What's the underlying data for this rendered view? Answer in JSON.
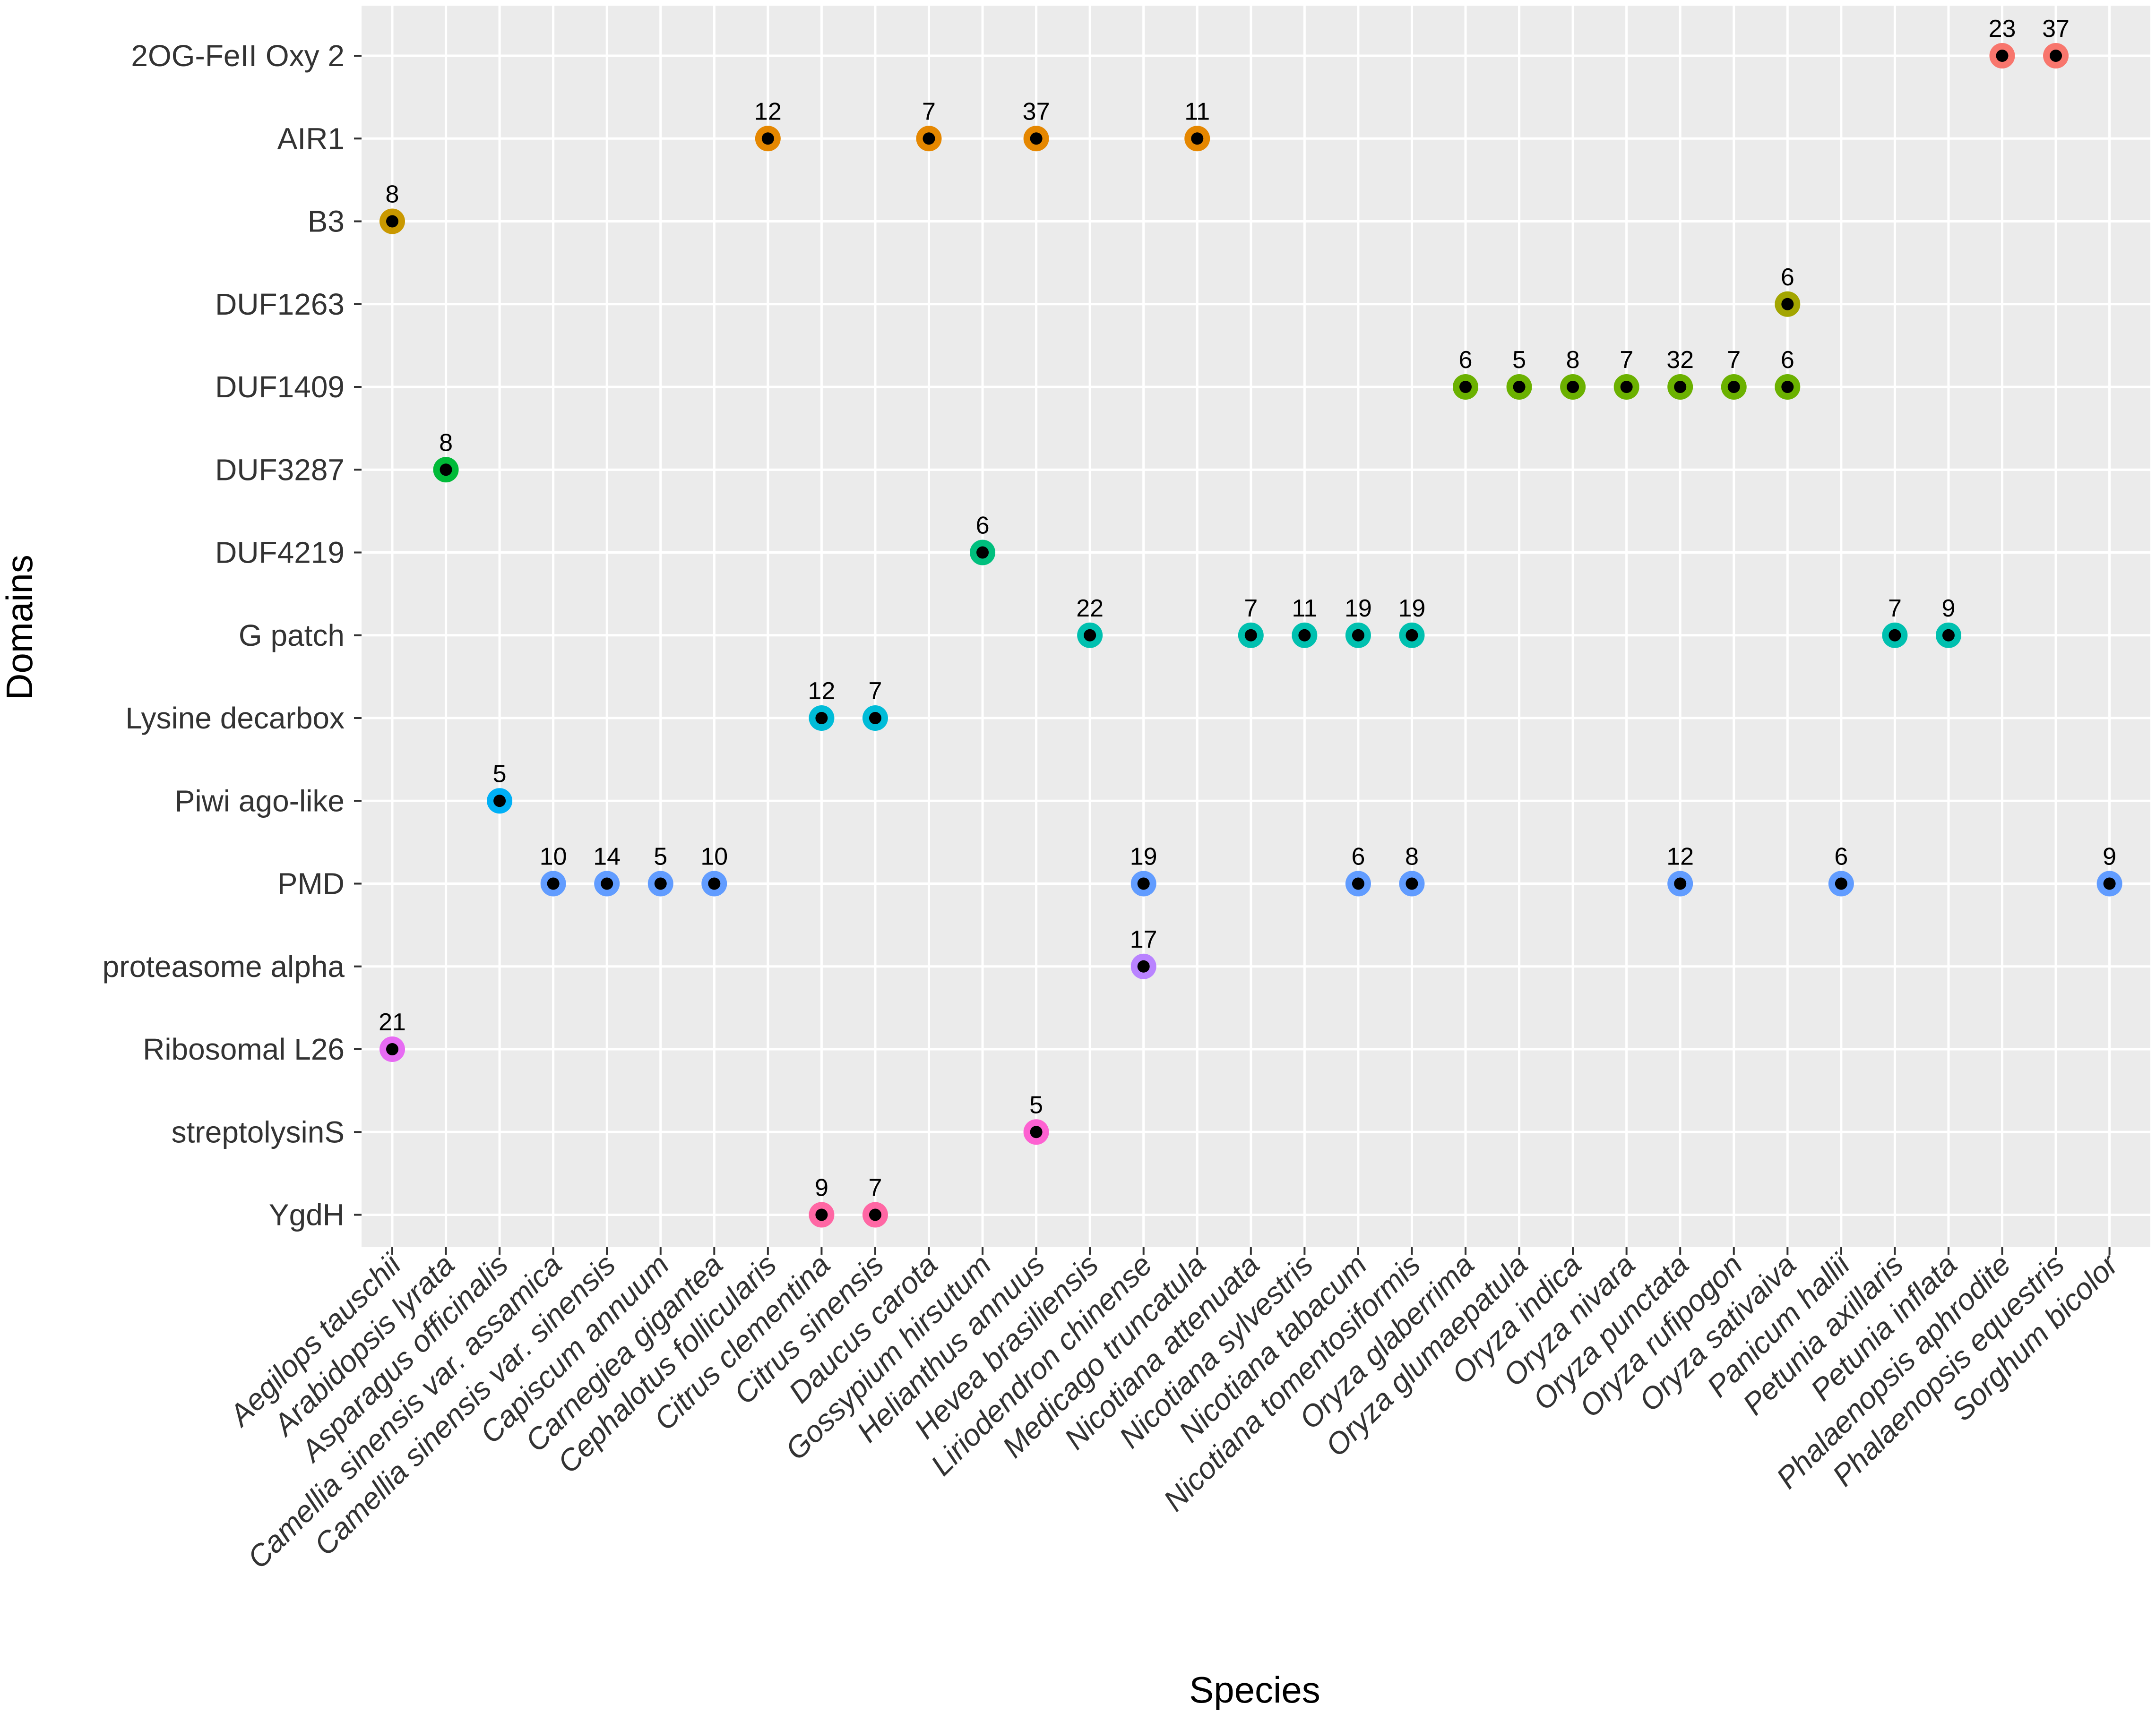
{
  "chart_data": {
    "type": "scatter",
    "title": "",
    "xlabel": "Species",
    "ylabel": "Domains",
    "grid": true,
    "legend": "none",
    "panel_background": "#ebebeb",
    "grid_color": "#ffffff",
    "point_center_color": "#000000",
    "categories_y": [
      "2OG-FeII Oxy 2",
      "AIR1",
      "B3",
      "DUF1263",
      "DUF1409",
      "DUF3287",
      "DUF4219",
      "G patch",
      "Lysine decarbox",
      "Piwi ago-like",
      "PMD",
      "proteasome alpha",
      "Ribosomal L26",
      "streptolysinS",
      "YgdH"
    ],
    "domain_colors": {
      "2OG-FeII Oxy 2": "#f8766d",
      "AIR1": "#e58700",
      "B3": "#c99800",
      "DUF1263": "#a3a500",
      "DUF1409": "#6bb100",
      "DUF3287": "#00ba38",
      "DUF4219": "#00bf7d",
      "G patch": "#00c0af",
      "Lysine decarbox": "#00bcd8",
      "Piwi ago-like": "#00b0f6",
      "PMD": "#619cff",
      "proteasome alpha": "#b983ff",
      "Ribosomal L26": "#e76bf3",
      "streptolysinS": "#fd61d1",
      "YgdH": "#ff67a4"
    },
    "categories_x": [
      "Aegilops tauschii",
      "Arabidopsis lyrata",
      "Asparagus officinalis",
      "Camellia sinensis var. assamica",
      "Camellia sinensis var. sinensis",
      "Capiscum annuum",
      "Carnegiea gigantea",
      "Cephalotus follicularis",
      "Citrus clementina",
      "Citrus sinensis",
      "Daucus carota",
      "Gossypium hirsutum",
      "Helianthus annuus",
      "Hevea brasiliensis",
      "Liriodendron chinense",
      "Medicago truncatula",
      "Nicotiana attenuata",
      "Nicotiana sylvestris",
      "Nicotiana tabacum",
      "Nicotiana tomentosiformis",
      "Oryza glaberrima",
      "Oryza glumaepatula",
      "Oryza indica",
      "Oryza nivara",
      "Oryza punctata",
      "Oryza rufipogon",
      "Oryza sativaiva",
      "Panicum hallii",
      "Petunia axillaris",
      "Petunia inflata",
      "Phalaenopsis aphrodite",
      "Phalaenopsis equestris",
      "Sorghum bicolor"
    ],
    "points": [
      {
        "x": "Phalaenopsis aphrodite",
        "y": "2OG-FeII Oxy 2",
        "label": "23"
      },
      {
        "x": "Phalaenopsis equestris",
        "y": "2OG-FeII Oxy 2",
        "label": "37"
      },
      {
        "x": "Cephalotus follicularis",
        "y": "AIR1",
        "label": "12"
      },
      {
        "x": "Daucus carota",
        "y": "AIR1",
        "label": "7"
      },
      {
        "x": "Helianthus annuus",
        "y": "AIR1",
        "label": "37"
      },
      {
        "x": "Medicago truncatula",
        "y": "AIR1",
        "label": "11"
      },
      {
        "x": "Aegilops tauschii",
        "y": "B3",
        "label": "8"
      },
      {
        "x": "Oryza sativaiva",
        "y": "DUF1263",
        "label": "6"
      },
      {
        "x": "Oryza glaberrima",
        "y": "DUF1409",
        "label": "6"
      },
      {
        "x": "Oryza glumaepatula",
        "y": "DUF1409",
        "label": "5"
      },
      {
        "x": "Oryza indica",
        "y": "DUF1409",
        "label": "8"
      },
      {
        "x": "Oryza nivara",
        "y": "DUF1409",
        "label": "7"
      },
      {
        "x": "Oryza punctata",
        "y": "DUF1409",
        "label": "32"
      },
      {
        "x": "Oryza rufipogon",
        "y": "DUF1409",
        "label": "7"
      },
      {
        "x": "Oryza sativaiva",
        "y": "DUF1409",
        "label": "6"
      },
      {
        "x": "Arabidopsis lyrata",
        "y": "DUF3287",
        "label": "8"
      },
      {
        "x": "Gossypium hirsutum",
        "y": "DUF4219",
        "label": "6"
      },
      {
        "x": "Hevea brasiliensis",
        "y": "G patch",
        "label": "22"
      },
      {
        "x": "Nicotiana attenuata",
        "y": "G patch",
        "label": "7"
      },
      {
        "x": "Nicotiana sylvestris",
        "y": "G patch",
        "label": "11"
      },
      {
        "x": "Nicotiana tabacum",
        "y": "G patch",
        "label": "19"
      },
      {
        "x": "Nicotiana tomentosiformis",
        "y": "G patch",
        "label": "19"
      },
      {
        "x": "Petunia axillaris",
        "y": "G patch",
        "label": "7"
      },
      {
        "x": "Petunia inflata",
        "y": "G patch",
        "label": "9"
      },
      {
        "x": "Citrus clementina",
        "y": "Lysine decarbox",
        "label": "12"
      },
      {
        "x": "Citrus sinensis",
        "y": "Lysine decarbox",
        "label": "7"
      },
      {
        "x": "Asparagus officinalis",
        "y": "Piwi ago-like",
        "label": "5"
      },
      {
        "x": "Camellia sinensis var. assamica",
        "y": "PMD",
        "label": "10"
      },
      {
        "x": "Camellia sinensis var. sinensis",
        "y": "PMD",
        "label": "14"
      },
      {
        "x": "Capiscum annuum",
        "y": "PMD",
        "label": "5"
      },
      {
        "x": "Carnegiea gigantea",
        "y": "PMD",
        "label": "10"
      },
      {
        "x": "Liriodendron chinense",
        "y": "PMD",
        "label": "19"
      },
      {
        "x": "Nicotiana tabacum",
        "y": "PMD",
        "label": "6"
      },
      {
        "x": "Nicotiana tomentosiformis",
        "y": "PMD",
        "label": "8"
      },
      {
        "x": "Oryza punctata",
        "y": "PMD",
        "label": "12"
      },
      {
        "x": "Panicum hallii",
        "y": "PMD",
        "label": "6"
      },
      {
        "x": "Sorghum bicolor",
        "y": "PMD",
        "label": "9"
      },
      {
        "x": "Liriodendron chinense",
        "y": "proteasome alpha",
        "label": "17"
      },
      {
        "x": "Aegilops tauschii",
        "y": "Ribosomal L26",
        "label": "21"
      },
      {
        "x": "Helianthus annuus",
        "y": "streptolysinS",
        "label": "5"
      },
      {
        "x": "Citrus clementina",
        "y": "YgdH",
        "label": "9"
      },
      {
        "x": "Citrus sinensis",
        "y": "YgdH",
        "label": "7"
      }
    ]
  }
}
